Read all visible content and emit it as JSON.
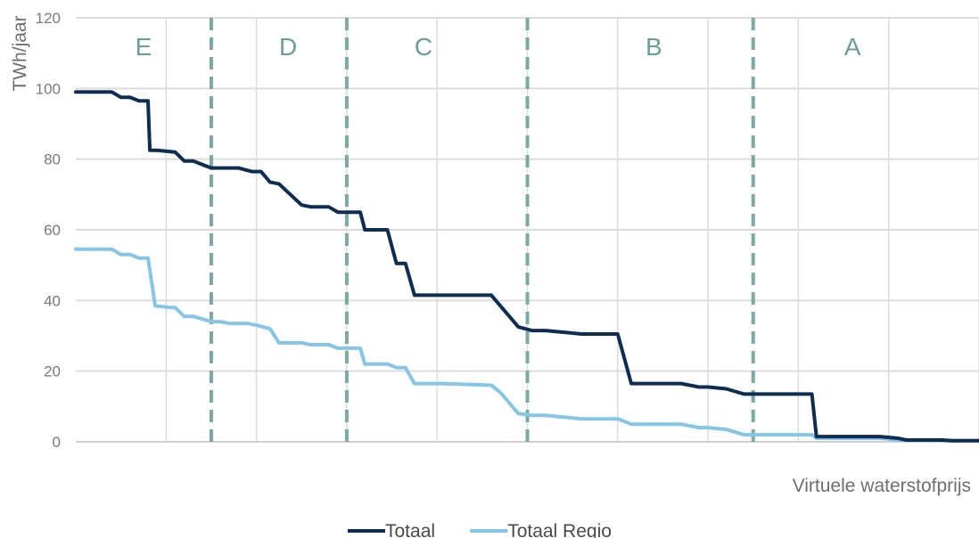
{
  "chart_data": {
    "type": "line",
    "title": "",
    "ylabel": "TWh/jaar",
    "xlabel": "Virtuele waterstofprijs",
    "ylim": [
      0,
      120
    ],
    "yticks": [
      0,
      20,
      40,
      60,
      80,
      100,
      120
    ],
    "xlim": [
      0,
      100
    ],
    "grid": true,
    "legend_position": "bottom",
    "x_gridlines": [
      10,
      20,
      30,
      40,
      50,
      60,
      70,
      80,
      90,
      100
    ],
    "zone_boundaries": [
      15,
      30,
      50,
      75
    ],
    "zones": [
      {
        "label": "E",
        "x": 7.5
      },
      {
        "label": "D",
        "x": 23.5
      },
      {
        "label": "C",
        "x": 38.5
      },
      {
        "label": "B",
        "x": 64
      },
      {
        "label": "A",
        "x": 86
      }
    ],
    "series": [
      {
        "name": "Totaal",
        "color": "#0f2d52",
        "x": [
          0,
          4,
          5,
          6,
          7,
          8,
          8.2,
          9,
          11,
          12,
          13,
          15,
          16,
          18,
          19.5,
          20.5,
          21.5,
          22.5,
          25,
          26,
          28,
          29,
          30,
          31.5,
          32,
          34.5,
          35.5,
          36.5,
          37.5,
          38.5,
          40.5,
          46,
          47,
          49,
          50.5,
          52,
          54,
          56,
          59,
          60,
          61.5,
          66,
          67,
          69,
          70,
          72,
          74,
          75,
          77,
          80,
          81,
          81.5,
          82,
          86,
          87,
          88,
          89,
          91,
          92,
          96,
          97,
          100
        ],
        "y": [
          99,
          99,
          97.5,
          97.5,
          96.5,
          96.5,
          82.5,
          82.5,
          82,
          79.5,
          79.5,
          77.5,
          77.5,
          77.5,
          76.5,
          76.5,
          73.5,
          73,
          67,
          66.5,
          66.5,
          65,
          65,
          65,
          60,
          60,
          50.5,
          50.5,
          41.5,
          41.5,
          41.5,
          41.5,
          38.5,
          32.5,
          31.5,
          31.5,
          31,
          30.5,
          30.5,
          30.5,
          16.5,
          16.5,
          16.5,
          15.5,
          15.5,
          15,
          13.5,
          13.5,
          13.5,
          13.5,
          13.5,
          13.5,
          1.5,
          1.5,
          1.5,
          1.5,
          1.5,
          1,
          0.5,
          0.5,
          0.3,
          0.3
        ]
      },
      {
        "name": "Totaal Regio",
        "color": "#85c5e6",
        "x": [
          0,
          4,
          5,
          6,
          7,
          8,
          8.8,
          10.5,
          11,
          12,
          13,
          15,
          16,
          17,
          19,
          20,
          21.5,
          22.5,
          25,
          26,
          28,
          29,
          30,
          31.5,
          32,
          34.5,
          35.5,
          36.5,
          37.5,
          38.5,
          40.5,
          46,
          47,
          49,
          50.5,
          52,
          54,
          56,
          59,
          60,
          61.5,
          66,
          67,
          69,
          70,
          72,
          74,
          75,
          77,
          80,
          81,
          81.5,
          82,
          86,
          87,
          88,
          89,
          91,
          92,
          96,
          97,
          100
        ],
        "y": [
          54.5,
          54.5,
          53,
          53,
          52,
          52,
          38.5,
          38,
          38,
          35.5,
          35.5,
          34,
          34,
          33.5,
          33.5,
          33,
          32,
          28,
          28,
          27.5,
          27.5,
          26.5,
          26.5,
          26.5,
          22,
          22,
          21,
          21,
          16.5,
          16.5,
          16.5,
          16,
          14,
          8,
          7.5,
          7.5,
          7,
          6.5,
          6.5,
          6.5,
          5,
          5,
          5,
          4,
          4,
          3.5,
          2,
          2,
          2,
          2,
          2,
          2,
          1,
          1,
          1,
          1,
          1,
          0.5,
          0.5,
          0.4,
          0.3,
          0.3
        ]
      }
    ]
  }
}
